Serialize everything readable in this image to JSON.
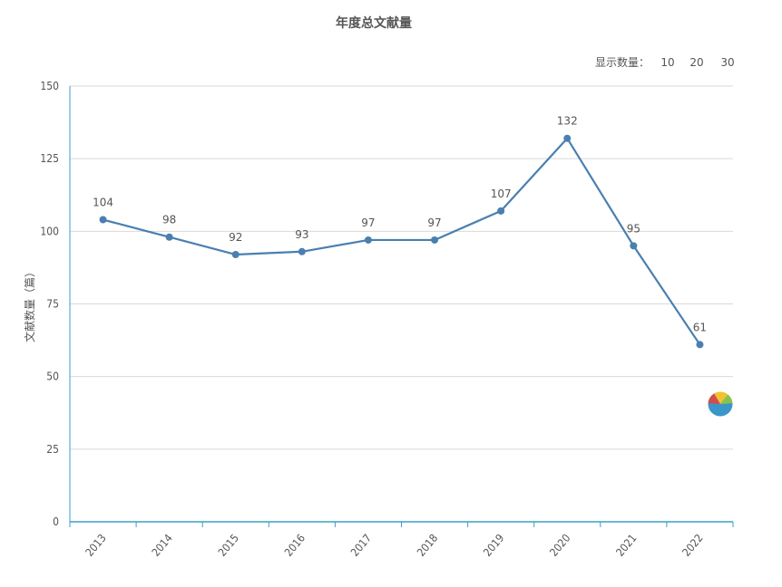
{
  "chart_title": "年度总文献量",
  "display_count": {
    "label": "显示数量：",
    "options": [
      {
        "text": "10",
        "color": "#ff3300"
      },
      {
        "text": "20",
        "color": "#1a1adb"
      },
      {
        "text": "30",
        "color": "#1a1adb"
      }
    ]
  },
  "colors": {
    "line": "#4a7fb0",
    "axis": "#3a9fc8",
    "grid": "#d9d9d9",
    "text": "#555555"
  },
  "icons": {
    "floating": "chart-badge-icon"
  },
  "chart_data": {
    "type": "line",
    "title": "年度总文献量",
    "xlabel": "",
    "ylabel": "文献数量（篇）",
    "categories": [
      "2013",
      "2014",
      "2015",
      "2016",
      "2017",
      "2018",
      "2019",
      "2020",
      "2021",
      "2022"
    ],
    "values": [
      104,
      98,
      92,
      93,
      97,
      97,
      107,
      132,
      95,
      61
    ],
    "ylim": [
      0,
      150
    ],
    "yticks": [
      0,
      25,
      50,
      75,
      100,
      125,
      150
    ],
    "grid": true,
    "data_labels": true
  }
}
